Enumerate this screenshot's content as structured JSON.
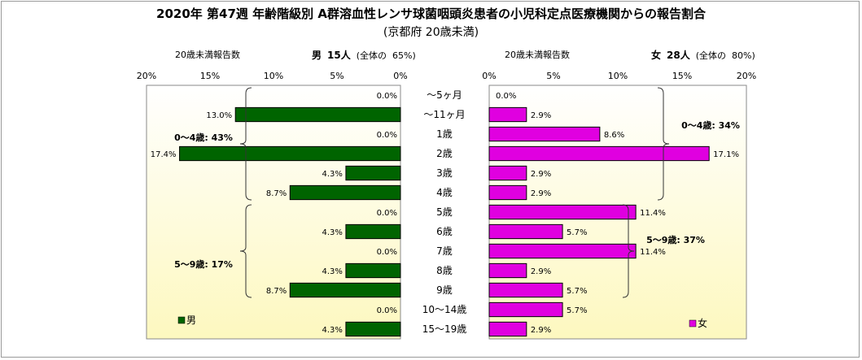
{
  "header": {
    "title": "2020年 第47週 年齢階級別 A群溶血性レンサ球菌咽頭炎患者の小児科定点医療機関からの報告割合",
    "subtitle": "(京都府 20歳未満)"
  },
  "left_panel": {
    "caption": "20歳未満報告数",
    "gender": "男",
    "count": "15人",
    "share_prefix": "(全体の",
    "share_value": "65%)",
    "legend": "男",
    "color": "#006400"
  },
  "right_panel": {
    "caption": "20歳未満報告数",
    "gender": "女",
    "count": "28人",
    "share_prefix": "(全体の",
    "share_value": "80%)",
    "legend": "女",
    "color": "#e000e0"
  },
  "chart_data": {
    "type": "bar",
    "orientation": "horizontal-pyramid",
    "categories": [
      "～5ヶ月",
      "～11ヶ月",
      "1歳",
      "2歳",
      "3歳",
      "4歳",
      "5歳",
      "6歳",
      "7歳",
      "8歳",
      "9歳",
      "10～14歳",
      "15～19歳"
    ],
    "series": [
      {
        "name": "男",
        "values": [
          0.0,
          13.0,
          0.0,
          17.4,
          4.3,
          8.7,
          0.0,
          4.3,
          0.0,
          4.3,
          8.7,
          0.0,
          4.3
        ],
        "labels": [
          "0.0%",
          "13.0%",
          "0.0%",
          "17.4%",
          "4.3%",
          "8.7%",
          "0.0%",
          "4.3%",
          "0.0%",
          "4.3%",
          "8.7%",
          "0.0%",
          "4.3%"
        ]
      },
      {
        "name": "女",
        "values": [
          0.0,
          2.9,
          8.6,
          17.1,
          2.9,
          2.9,
          11.4,
          5.7,
          11.4,
          2.9,
          5.7,
          5.7,
          2.9
        ],
        "labels": [
          "0.0%",
          "2.9%",
          "8.6%",
          "17.1%",
          "2.9%",
          "2.9%",
          "11.4%",
          "5.7%",
          "11.4%",
          "2.9%",
          "5.7%",
          "5.7%",
          "2.9%"
        ]
      }
    ],
    "xlim": [
      0,
      20
    ],
    "ticks": [
      0,
      5,
      10,
      15,
      20
    ],
    "tick_labels_left": [
      "0%",
      "5%",
      "10%",
      "15%",
      "20%"
    ],
    "tick_labels_right": [
      "0%",
      "5%",
      "10%",
      "15%",
      "20%"
    ],
    "annotations": {
      "left": [
        {
          "text": "0～4歳: 43%",
          "from": 0,
          "to": 5
        },
        {
          "text": "5～9歳: 17%",
          "from": 6,
          "to": 10
        }
      ],
      "right": [
        {
          "text": "0～4歳: 34%",
          "from": 0,
          "to": 5
        },
        {
          "text": "5～9歳: 37%",
          "from": 6,
          "to": 10
        }
      ]
    },
    "grid": false
  }
}
